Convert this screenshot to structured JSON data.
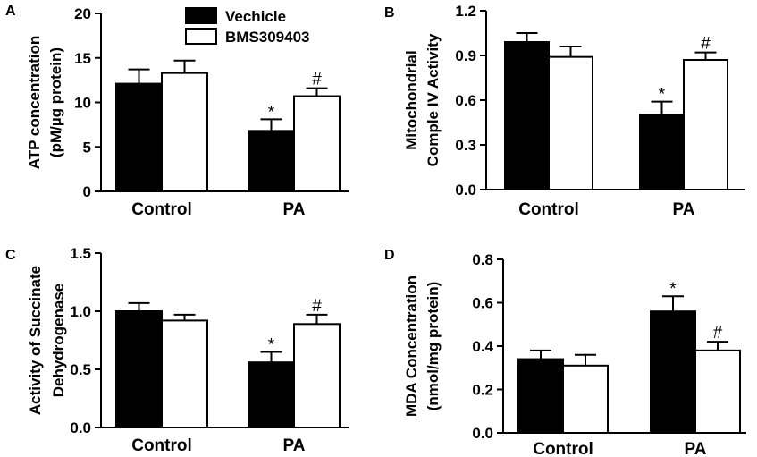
{
  "legend": {
    "items": [
      {
        "label": "Vechicle",
        "color": "#000000"
      },
      {
        "label": "BMS309403",
        "color": "#ffffff"
      }
    ]
  },
  "chart_data": [
    {
      "panel": "A",
      "type": "bar",
      "categories": [
        "Control",
        "PA"
      ],
      "ylabel_lines": [
        "ATP concentration",
        "(pM/µg protein)"
      ],
      "ylim": [
        0,
        20
      ],
      "yticks": [
        0,
        5,
        10,
        15,
        20
      ],
      "series": [
        {
          "name": "Vechicle",
          "values": [
            12.1,
            6.8
          ],
          "errors": [
            1.6,
            1.3
          ],
          "annotations": [
            "",
            "*"
          ]
        },
        {
          "name": "BMS309403",
          "values": [
            13.3,
            10.7
          ],
          "errors": [
            1.4,
            0.9
          ],
          "annotations": [
            "",
            "#"
          ]
        }
      ]
    },
    {
      "panel": "B",
      "type": "bar",
      "categories": [
        "Control",
        "PA"
      ],
      "ylabel_lines": [
        "Mitochondrial",
        "Comple IV Activity"
      ],
      "ylim": [
        0,
        1.2
      ],
      "yticks": [
        "0.0",
        "0.3",
        "0.6",
        "0.9",
        "1.2"
      ],
      "series": [
        {
          "name": "Vechicle",
          "values": [
            0.99,
            0.5
          ],
          "errors": [
            0.06,
            0.09
          ],
          "annotations": [
            "",
            "*"
          ]
        },
        {
          "name": "BMS309403",
          "values": [
            0.89,
            0.87
          ],
          "errors": [
            0.07,
            0.05
          ],
          "annotations": [
            "",
            "#"
          ]
        }
      ]
    },
    {
      "panel": "C",
      "type": "bar",
      "categories": [
        "Control",
        "PA"
      ],
      "ylabel_lines": [
        "Activity of Succinate",
        "Dehydrogenase"
      ],
      "ylim": [
        0,
        1.5
      ],
      "yticks": [
        "0.0",
        "0.5",
        "1.0",
        "1.5"
      ],
      "series": [
        {
          "name": "Vechicle",
          "values": [
            1.0,
            0.56
          ],
          "errors": [
            0.07,
            0.09
          ],
          "annotations": [
            "",
            "*"
          ]
        },
        {
          "name": "BMS309403",
          "values": [
            0.92,
            0.89
          ],
          "errors": [
            0.05,
            0.08
          ],
          "annotations": [
            "",
            "#"
          ]
        }
      ]
    },
    {
      "panel": "D",
      "type": "bar",
      "categories": [
        "Control",
        "PA"
      ],
      "ylabel_lines": [
        "MDA Concentration",
        "(nmol/mg protein)"
      ],
      "ylim": [
        0,
        0.8
      ],
      "yticks": [
        "0.0",
        "0.2",
        "0.4",
        "0.6",
        "0.8"
      ],
      "series": [
        {
          "name": "Vechicle",
          "values": [
            0.34,
            0.56
          ],
          "errors": [
            0.04,
            0.07
          ],
          "annotations": [
            "",
            "*"
          ]
        },
        {
          "name": "BMS309403",
          "values": [
            0.31,
            0.38
          ],
          "errors": [
            0.05,
            0.04
          ],
          "annotations": [
            "",
            "#"
          ]
        }
      ]
    }
  ]
}
